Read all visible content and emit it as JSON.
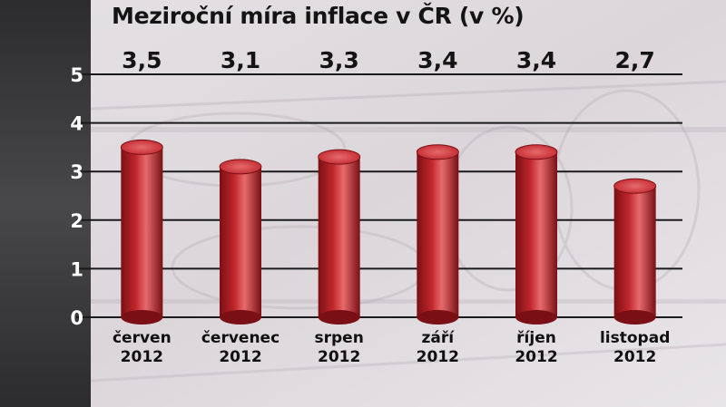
{
  "chart_data": {
    "type": "bar",
    "title": "Meziroční míra inflace v ČR (v %)",
    "xlabel": "",
    "ylabel": "",
    "categories": [
      [
        "červen",
        "2012"
      ],
      [
        "červenec",
        "2012"
      ],
      [
        "srpen",
        "2012"
      ],
      [
        "září",
        "2012"
      ],
      [
        "říjen",
        "2012"
      ],
      [
        "listopad",
        "2012"
      ]
    ],
    "values": [
      3.5,
      3.1,
      3.3,
      3.4,
      3.4,
      2.7
    ],
    "value_labels": [
      "3,5",
      "3,1",
      "3,3",
      "3,4",
      "3,4",
      "2,7"
    ],
    "yticks": [
      0,
      1,
      2,
      3,
      4,
      5
    ],
    "ylim": [
      0,
      5
    ],
    "grid": true,
    "legend": "none",
    "colors": {
      "bar": "#c0262c",
      "bar_dark": "#7a1015",
      "bar_light": "#e66a6c",
      "axis_panel": "#3a3a3c",
      "grid": "#1a1a1a"
    }
  }
}
